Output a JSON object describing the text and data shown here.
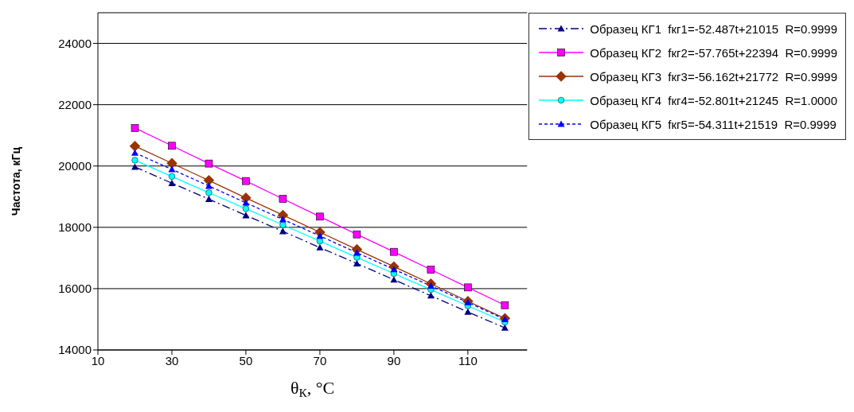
{
  "chart_data": {
    "type": "line",
    "xlabel": "θ$_{К}$, °C",
    "ylabel": "Частота, кГц",
    "x": [
      20,
      30,
      40,
      50,
      60,
      70,
      80,
      90,
      100,
      110,
      120
    ],
    "series": [
      {
        "name": "Образец КГ1  fкг1=-52.487t+21015  R=0.9999",
        "color": "#000080",
        "marker": "triangle",
        "line_style": "dashed",
        "values": [
          19970,
          19440,
          18920,
          18390,
          17870,
          17340,
          16820,
          16290,
          15770,
          15240,
          14720
        ]
      },
      {
        "name": "Образец КГ2  fкг2=-57.765t+22394  R=0.9999",
        "color": "#ff00ff",
        "marker": "square",
        "line_style": "solid",
        "values": [
          21240,
          20660,
          20080,
          19510,
          18930,
          18350,
          17770,
          17200,
          16620,
          16040,
          15460
        ]
      },
      {
        "name": "Образец КГ3  fкг3=-56.162t+21772  R=0.9999",
        "color": "#993300",
        "marker": "diamond",
        "line_style": "solid",
        "values": [
          20650,
          20090,
          19530,
          18960,
          18400,
          17840,
          17280,
          16720,
          16160,
          15590,
          15030
        ]
      },
      {
        "name": "Образец КГ4  fкг4=-52.801t+21245  R=1.0000",
        "color": "#00ffff",
        "marker": "circle",
        "line_style": "solid",
        "values": [
          20190,
          19660,
          19130,
          18610,
          18080,
          17550,
          17020,
          16490,
          15970,
          15440,
          14910
        ]
      },
      {
        "name": "Образец КГ5  fкг5=-54.311t+21519  R=0.9999",
        "color": "#0000ff",
        "marker": "triangle",
        "line_style": "dotted",
        "values": [
          20430,
          19890,
          19350,
          18800,
          18260,
          17720,
          17170,
          16630,
          16090,
          15550,
          15000
        ]
      }
    ],
    "xlim": [
      10,
      126
    ],
    "xticks": [
      10,
      30,
      50,
      70,
      90,
      110
    ],
    "ylim": [
      14000,
      25000
    ],
    "yticks": [
      14000,
      16000,
      18000,
      20000,
      22000,
      24000
    ],
    "grid": "y",
    "legend": "top right"
  }
}
